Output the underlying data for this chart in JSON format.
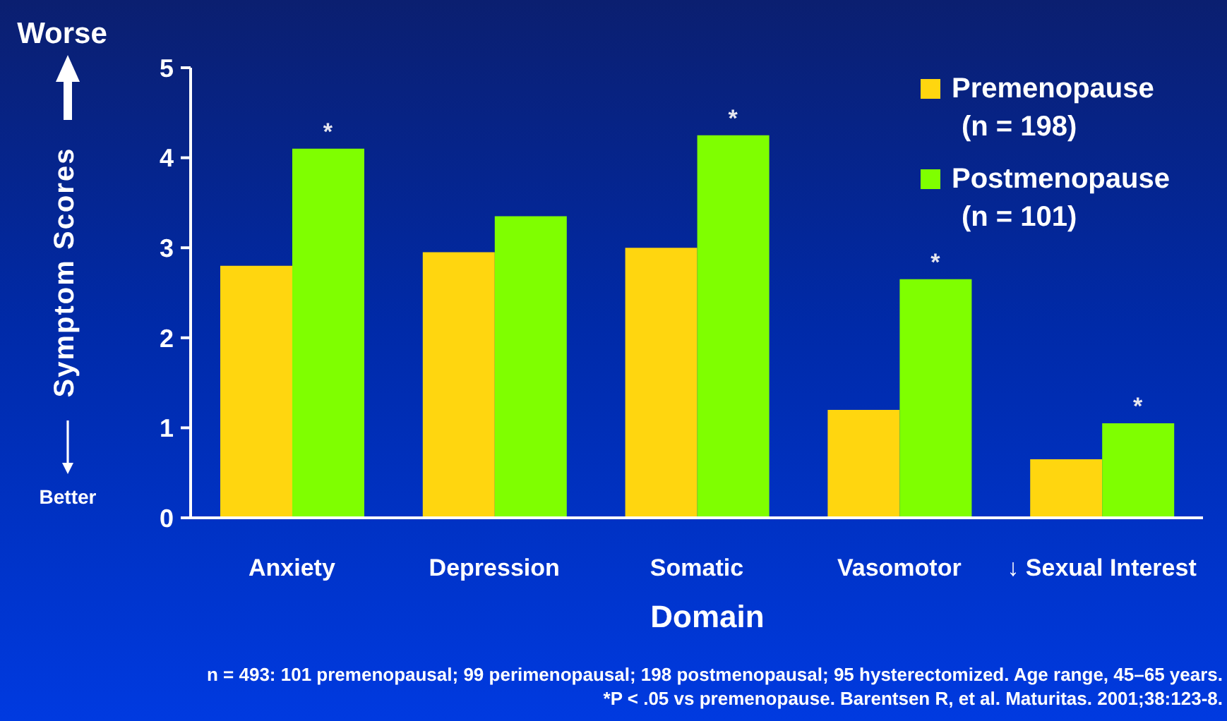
{
  "chart_data": {
    "type": "bar",
    "xlabel": "Domain",
    "ylabel": "Symptom Scores",
    "categories": [
      "Anxiety",
      "Depression",
      "Somatic",
      "Vasomotor",
      "↓ Sexual Interest"
    ],
    "series": [
      {
        "name": "Premenopause\n(n = 198)",
        "color": "#ffd60f",
        "values": [
          2.8,
          2.95,
          3.0,
          1.2,
          0.65
        ]
      },
      {
        "name": "Postmenopause\n(n = 101)",
        "color": "#7fff00",
        "values": [
          4.1,
          3.35,
          4.25,
          2.65,
          1.05
        ]
      }
    ],
    "ylim": [
      0,
      5
    ],
    "yticks": [
      0,
      1,
      2,
      3,
      4,
      5
    ],
    "legend": "top right",
    "annotations": [
      "Worse",
      "Better",
      {
        "text": "*",
        "x": "Anxiety",
        "y": 4.1
      },
      {
        "text": "*",
        "x": "Somatic",
        "y": 4.25
      },
      {
        "text": "*",
        "x": "Vasomotor",
        "y": 2.65
      },
      {
        "text": "*",
        "x": "↓ Sexual Interest",
        "y": 1.05
      },
      "n = 493: 101 premenopausal; 99 perimenopausal; 198 postmenopausal; 95 hysterectomized. Age range, 45–65 years.",
      "*P < .05 vs premenopause. Barentsen R, et al. Maturitas. 2001;38:123-8."
    ]
  }
}
